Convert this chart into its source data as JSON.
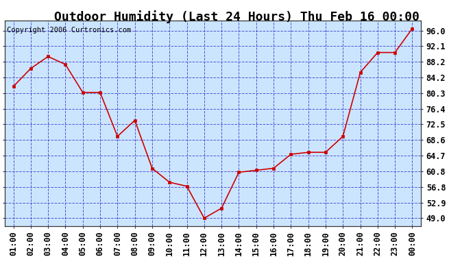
{
  "title": "Outdoor Humidity (Last 24 Hours) Thu Feb 16 00:00",
  "copyright": "Copyright 2006 Curtronics.com",
  "x_labels": [
    "01:00",
    "02:00",
    "03:00",
    "04:00",
    "05:00",
    "06:00",
    "07:00",
    "08:00",
    "09:00",
    "10:00",
    "11:00",
    "12:00",
    "13:00",
    "14:00",
    "15:00",
    "16:00",
    "17:00",
    "18:00",
    "19:00",
    "20:00",
    "21:00",
    "22:00",
    "23:00",
    "00:00"
  ],
  "y_values": [
    82.0,
    86.5,
    89.5,
    87.5,
    80.5,
    80.5,
    69.5,
    73.5,
    61.5,
    58.0,
    57.0,
    49.0,
    51.5,
    60.5,
    61.0,
    61.5,
    65.0,
    65.5,
    65.5,
    69.5,
    85.5,
    90.5,
    90.5,
    96.5
  ],
  "y_ticks": [
    49.0,
    52.9,
    56.8,
    60.8,
    64.7,
    68.6,
    72.5,
    76.4,
    80.3,
    84.2,
    88.2,
    92.1,
    96.0
  ],
  "y_tick_labels": [
    "49.0",
    "52.9",
    "56.8",
    "60.8",
    "64.7",
    "68.6",
    "72.5",
    "76.4",
    "80.3",
    "84.2",
    "88.2",
    "92.1",
    "96.0"
  ],
  "line_color": "#cc0000",
  "marker_color": "#cc0000",
  "plot_bg": "#cce5ff",
  "grid_color": "#4444cc",
  "title_fontsize": 13,
  "tick_fontsize": 8.5,
  "copyright_fontsize": 7.5,
  "y_min": 47.0,
  "y_max": 98.5
}
